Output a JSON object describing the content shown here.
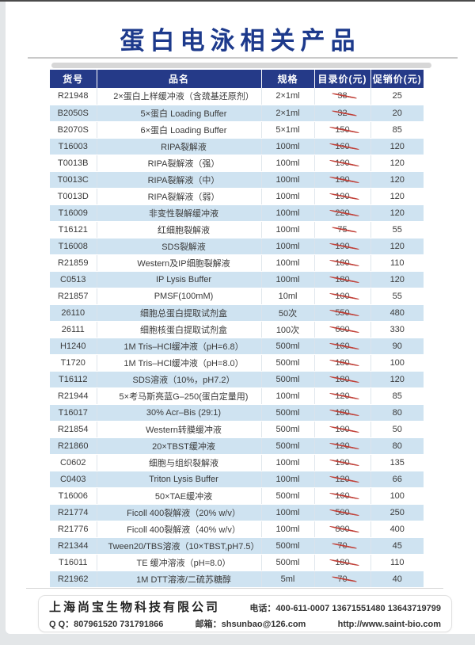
{
  "page": {
    "title": "蛋白电泳相关产品"
  },
  "colors": {
    "title_blue": "#1d3a8c",
    "header_navy": "#253a88",
    "row_blue": "#cfe3f1",
    "strike_red": "#c04038"
  },
  "table": {
    "columns": [
      "货号",
      "品名",
      "规格",
      "目录价(元)",
      "促销价(元)"
    ],
    "rows": [
      {
        "code": "R21948",
        "name": "2×蛋白上样缓冲液（含巯基还原剂）",
        "spec": "2×1ml",
        "list": "38",
        "promo": "25"
      },
      {
        "code": "B2050S",
        "name": "5×蛋白 Loading Buffer",
        "spec": "2×1ml",
        "list": "32",
        "promo": "20"
      },
      {
        "code": "B2070S",
        "name": "6×蛋白 Loading Buffer",
        "spec": "5×1ml",
        "list": "150",
        "promo": "85"
      },
      {
        "code": "T16003",
        "name": "RIPA裂解液",
        "spec": "100ml",
        "list": "160",
        "promo": "120"
      },
      {
        "code": "T0013B",
        "name": "RIPA裂解液（强）",
        "spec": "100ml",
        "list": "190",
        "promo": "120"
      },
      {
        "code": "T0013C",
        "name": "RIPA裂解液（中）",
        "spec": "100ml",
        "list": "190",
        "promo": "120"
      },
      {
        "code": "T0013D",
        "name": "RIPA裂解液（弱）",
        "spec": "100ml",
        "list": "190",
        "promo": "120"
      },
      {
        "code": "T16009",
        "name": "非变性裂解缓冲液",
        "spec": "100ml",
        "list": "220",
        "promo": "120"
      },
      {
        "code": "T16121",
        "name": "红细胞裂解液",
        "spec": "100ml",
        "list": "75",
        "promo": "55"
      },
      {
        "code": "T16008",
        "name": "SDS裂解液",
        "spec": "100ml",
        "list": "190",
        "promo": "120"
      },
      {
        "code": "R21859",
        "name": "Western及IP细胞裂解液",
        "spec": "100ml",
        "list": "180",
        "promo": "110"
      },
      {
        "code": "C0513",
        "name": "IP Lysis Buffer",
        "spec": "100ml",
        "list": "180",
        "promo": "120"
      },
      {
        "code": "R21857",
        "name": "PMSF(100mM)",
        "spec": "10ml",
        "list": "100",
        "promo": "55"
      },
      {
        "code": "26110",
        "name": "细胞总蛋白提取试剂盒",
        "spec": "50次",
        "list": "550",
        "promo": "480"
      },
      {
        "code": "26111",
        "name": "细胞核蛋白提取试剂盒",
        "spec": "100次",
        "list": "600",
        "promo": "330"
      },
      {
        "code": "H1240",
        "name": "1M Tris–HCl缓冲液（pH=6.8）",
        "spec": "500ml",
        "list": "160",
        "promo": "90"
      },
      {
        "code": "T1720",
        "name": "1M Tris–HCl缓冲液（pH=8.0）",
        "spec": "500ml",
        "list": "180",
        "promo": "100"
      },
      {
        "code": "T16112",
        "name": "SDS溶液（10%，pH7.2）",
        "spec": "500ml",
        "list": "180",
        "promo": "120"
      },
      {
        "code": "R21944",
        "name": "5×考马斯亮蓝G–250(蛋白定量用)",
        "spec": "100ml",
        "list": "120",
        "promo": "85"
      },
      {
        "code": "T16017",
        "name": "30% Acr–Bis (29:1)",
        "spec": "500ml",
        "list": "180",
        "promo": "80"
      },
      {
        "code": "R21854",
        "name": "Western转膜缓冲液",
        "spec": "500ml",
        "list": "100",
        "promo": "50"
      },
      {
        "code": "R21860",
        "name": "20×TBST缓冲液",
        "spec": "500ml",
        "list": "120",
        "promo": "80"
      },
      {
        "code": "C0602",
        "name": "细胞与组织裂解液",
        "spec": "100ml",
        "list": "190",
        "promo": "135"
      },
      {
        "code": "C0403",
        "name": "Triton Lysis Buffer",
        "spec": "100ml",
        "list": "120",
        "promo": "66"
      },
      {
        "code": "T16006",
        "name": "50×TAE缓冲液",
        "spec": "500ml",
        "list": "160",
        "promo": "100"
      },
      {
        "code": "R21774",
        "name": "Ficoll 400裂解液（20% w/v）",
        "spec": "100ml",
        "list": "500",
        "promo": "250"
      },
      {
        "code": "R21776",
        "name": "Ficoll 400裂解液（40% w/v）",
        "spec": "100ml",
        "list": "800",
        "promo": "400"
      },
      {
        "code": "R21344",
        "name": "Tween20/TBS溶液（10×TBST,pH7.5）",
        "spec": "500ml",
        "list": "70",
        "promo": "45"
      },
      {
        "code": "T16011",
        "name": "TE 缓冲溶液（pH=8.0）",
        "spec": "500ml",
        "list": "180",
        "promo": "110"
      },
      {
        "code": "R21962",
        "name": "1M DTT溶液/二硫苏糖醇",
        "spec": "5ml",
        "list": "70",
        "promo": "40"
      }
    ]
  },
  "footer": {
    "company": "上海尚宝生物科技有限公司",
    "phone": "电话：400-611-0007   13671551480   13643719799",
    "qq": "Q Q：807961520     731791866",
    "email": "邮箱：shsunbao@126.com",
    "website": "http://www.saint-bio.com"
  }
}
